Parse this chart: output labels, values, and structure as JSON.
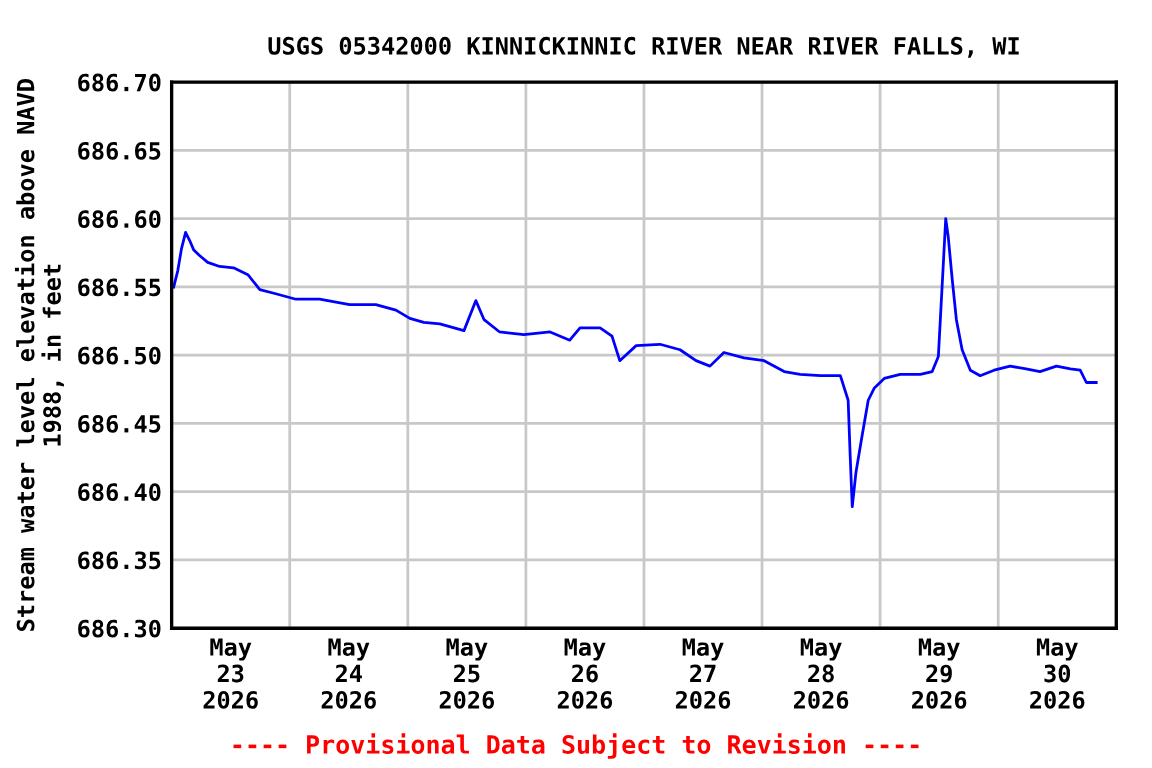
{
  "chart_data": {
    "type": "line",
    "title": "USGS 05342000 KINNICKINNIC RIVER NEAR RIVER FALLS, WI",
    "ylabel": "Stream water level elevation above NAVD\n1988, in feet",
    "annotations": [
      "---- Provisional Data Subject to Revision ----"
    ],
    "x": [
      "2026-05-23T00:25",
      "2026-05-23T01:15",
      "2026-05-23T02:00",
      "2026-05-23T02:50",
      "2026-05-23T03:40",
      "2026-05-23T04:30",
      "2026-05-23T05:40",
      "2026-05-23T07:20",
      "2026-05-23T09:45",
      "2026-05-23T12:35",
      "2026-05-23T15:30",
      "2026-05-23T17:55",
      "2026-05-23T21:10",
      "2026-05-24T01:15",
      "2026-05-24T06:05",
      "2026-05-24T12:10",
      "2026-05-24T17:30",
      "2026-05-24T21:35",
      "2026-05-25T00:25",
      "2026-05-25T03:15",
      "2026-05-25T06:30",
      "2026-05-25T11:25",
      "2026-05-25T13:50",
      "2026-05-25T15:30",
      "2026-05-25T18:40",
      "2026-05-25T23:35",
      "2026-05-26T04:55",
      "2026-05-26T08:55",
      "2026-05-26T11:00",
      "2026-05-26T15:05",
      "2026-05-26T17:30",
      "2026-05-26T19:05",
      "2026-05-26T22:25",
      "2026-05-27T03:15",
      "2026-05-27T07:20",
      "2026-05-27T10:35",
      "2026-05-27T13:25",
      "2026-05-27T16:15",
      "2026-05-27T20:20",
      "2026-05-28T00:25",
      "2026-05-28T04:30",
      "2026-05-28T07:45",
      "2026-05-28T11:50",
      "2026-05-28T15:55",
      "2026-05-28T17:30",
      "2026-05-28T17:55",
      "2026-05-28T18:20",
      "2026-05-28T19:05",
      "2026-05-28T20:20",
      "2026-05-28T21:35",
      "2026-05-28T22:50",
      "2026-05-29T00:50",
      "2026-05-29T04:05",
      "2026-05-29T08:10",
      "2026-05-29T10:35",
      "2026-05-29T11:50",
      "2026-05-29T12:40",
      "2026-05-29T13:20",
      "2026-05-29T13:50",
      "2026-05-29T14:40",
      "2026-05-29T15:30",
      "2026-05-29T16:40",
      "2026-05-29T18:20",
      "2026-05-29T20:20",
      "2026-05-29T23:10",
      "2026-05-30T02:25",
      "2026-05-30T05:40",
      "2026-05-30T08:30",
      "2026-05-30T11:50",
      "2026-05-30T14:40",
      "2026-05-30T16:40",
      "2026-05-30T17:55",
      "2026-05-30T19:55"
    ],
    "series": [
      {
        "color": "#0000ff",
        "values": [
          686.55,
          686.562,
          686.578,
          686.59,
          686.584,
          686.577,
          686.573,
          686.568,
          686.565,
          686.564,
          686.559,
          686.548,
          686.545,
          686.541,
          686.541,
          686.537,
          686.537,
          686.533,
          686.527,
          686.524,
          686.523,
          686.518,
          686.54,
          686.526,
          686.517,
          686.515,
          686.517,
          686.511,
          686.52,
          686.52,
          686.514,
          686.496,
          686.507,
          686.508,
          686.504,
          686.496,
          686.492,
          686.502,
          686.498,
          686.496,
          686.488,
          686.486,
          686.485,
          686.485,
          686.467,
          686.426,
          686.389,
          686.414,
          686.441,
          686.467,
          686.476,
          686.483,
          686.486,
          686.486,
          686.488,
          686.499,
          686.555,
          686.6,
          686.587,
          686.555,
          686.526,
          686.504,
          686.489,
          686.485,
          686.489,
          686.492,
          686.49,
          686.488,
          686.492,
          686.49,
          686.489,
          686.48,
          686.48
        ]
      }
    ],
    "xlim": [
      "2026-05-23T00:00",
      "2026-05-31T00:00"
    ],
    "xticks": [
      {
        "value": "2026-05-23T12:00",
        "label": "May\n23\n2026"
      },
      {
        "value": "2026-05-24T00:00",
        "label": null
      },
      {
        "value": "2026-05-24T12:00",
        "label": "May\n24\n2026"
      },
      {
        "value": "2026-05-25T00:00",
        "label": null
      },
      {
        "value": "2026-05-25T12:00",
        "label": "May\n25\n2026"
      },
      {
        "value": "2026-05-26T00:00",
        "label": null
      },
      {
        "value": "2026-05-26T12:00",
        "label": "May\n26\n2026"
      },
      {
        "value": "2026-05-27T00:00",
        "label": null
      },
      {
        "value": "2026-05-27T12:00",
        "label": "May\n27\n2026"
      },
      {
        "value": "2026-05-28T00:00",
        "label": null
      },
      {
        "value": "2026-05-28T12:00",
        "label": "May\n28\n2026"
      },
      {
        "value": "2026-05-29T00:00",
        "label": null
      },
      {
        "value": "2026-05-29T12:00",
        "label": "May\n29\n2026"
      },
      {
        "value": "2026-05-30T00:00",
        "label": null
      },
      {
        "value": "2026-05-30T12:00",
        "label": "May\n30\n2026"
      }
    ],
    "ylim": [
      686.3,
      686.7
    ],
    "yticks": [
      {
        "value": 686.3,
        "label": "686.30"
      },
      {
        "value": 686.35,
        "label": "686.35"
      },
      {
        "value": 686.4,
        "label": "686.40"
      },
      {
        "value": 686.45,
        "label": "686.45"
      },
      {
        "value": 686.5,
        "label": "686.50"
      },
      {
        "value": 686.55,
        "label": "686.55"
      },
      {
        "value": 686.6,
        "label": "686.60"
      },
      {
        "value": 686.65,
        "label": "686.65"
      },
      {
        "value": 686.7,
        "label": "686.70"
      }
    ],
    "grid": true,
    "marker": "none",
    "line_style": "solid"
  }
}
